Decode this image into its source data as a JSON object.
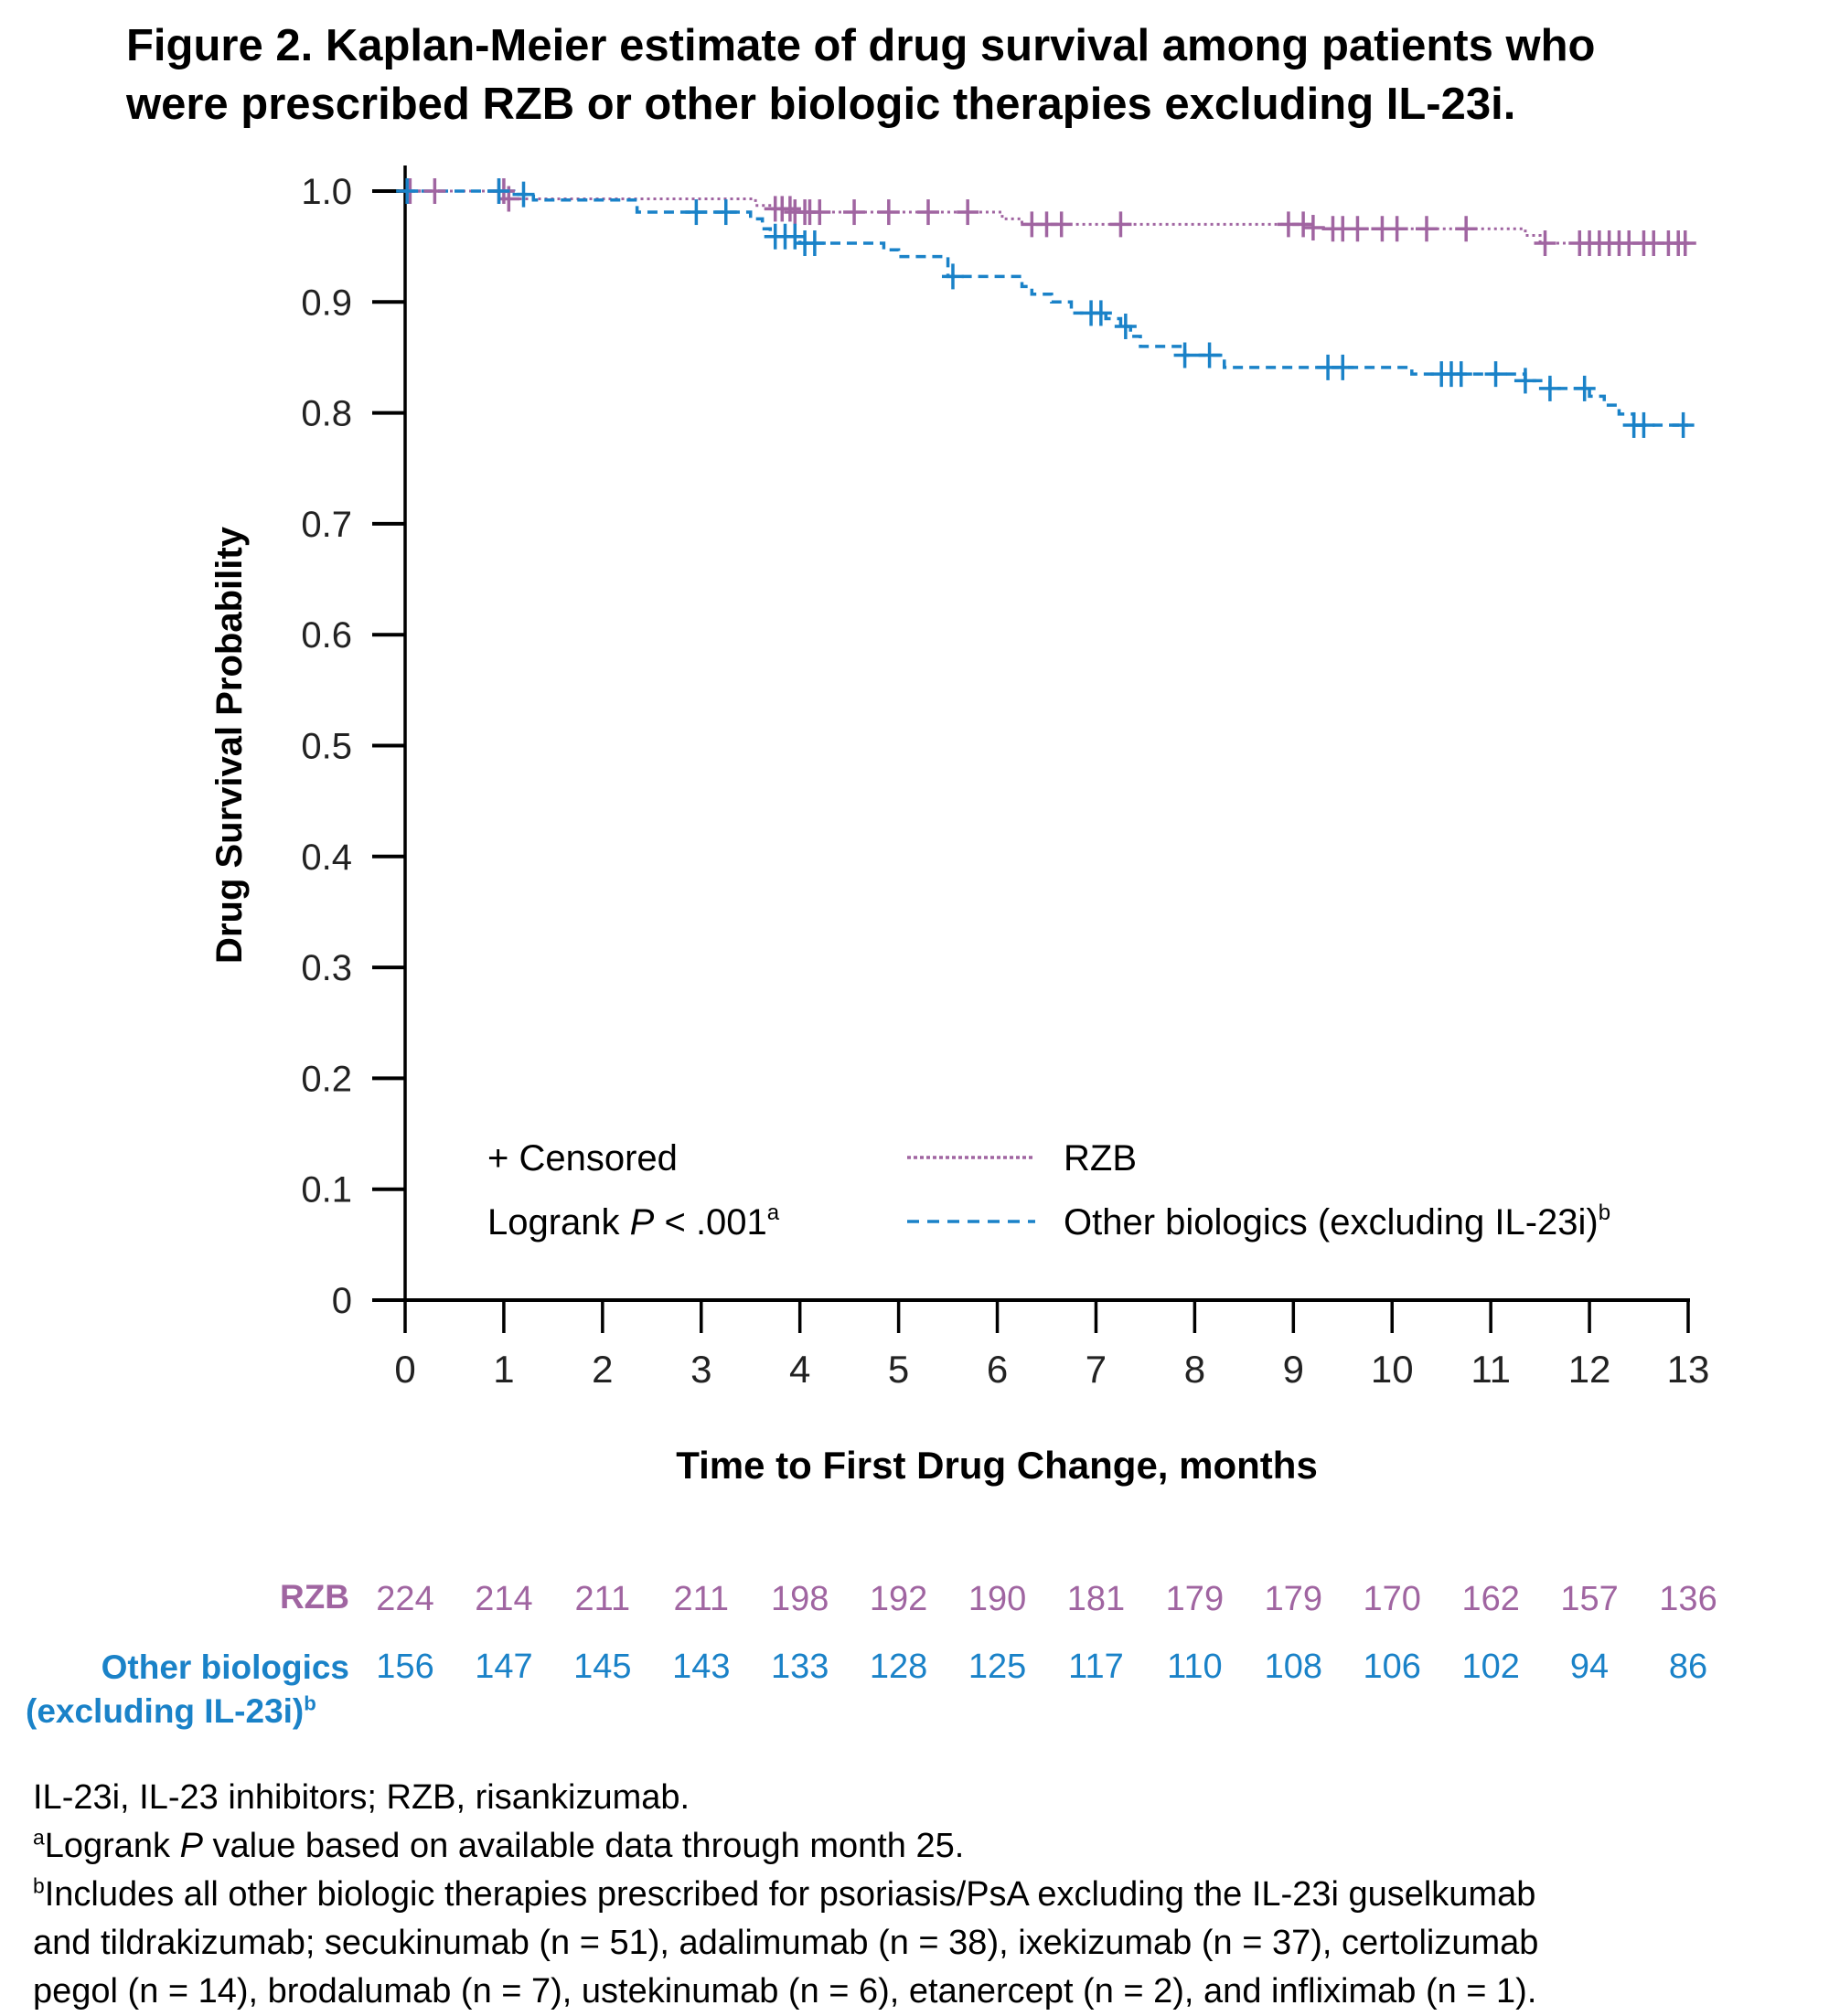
{
  "title": {
    "line1": "Figure 2. Kaplan-Meier estimate of drug survival among patients who",
    "line2": "were prescribed RZB or other biologic therapies excluding IL-23i."
  },
  "colors": {
    "rzb": "#a065a1",
    "other": "#1a82c8",
    "axis": "#000000"
  },
  "chart_data": {
    "type": "line",
    "subtype": "kaplan-meier step",
    "title": "Kaplan-Meier estimate of drug survival among patients who were prescribed RZB or other biologic therapies excluding IL-23i",
    "xlabel": "Time to First Drug Change, months",
    "ylabel": "Drug Survival Probability",
    "xlim": [
      0,
      13
    ],
    "ylim": [
      0,
      1.0
    ],
    "xticks": [
      "0",
      "1",
      "2",
      "3",
      "4",
      "5",
      "6",
      "7",
      "8",
      "9",
      "10",
      "11",
      "12",
      "13"
    ],
    "yticks": [
      "0",
      "0.1",
      "0.2",
      "0.3",
      "0.4",
      "0.5",
      "0.6",
      "0.7",
      "0.8",
      "0.9",
      "1.0"
    ],
    "grid": false,
    "legend": {
      "placement": "bottom-center",
      "censored_label": "+ Censored",
      "logrank_prefix": "Logrank ",
      "logrank_p": "P",
      "logrank_value": " < .001",
      "logrank_sup": "a",
      "entries": [
        {
          "name": "RZB",
          "style": "dotted",
          "sup": ""
        },
        {
          "name": "Other biologics (excluding IL-23i)",
          "style": "dashed",
          "sup": "b"
        }
      ]
    },
    "series": [
      {
        "name": "RZB",
        "style": "dotted",
        "steps": [
          [
            0,
            1.0
          ],
          [
            1.05,
            0.993
          ],
          [
            3.55,
            0.987
          ],
          [
            3.75,
            0.984
          ],
          [
            3.95,
            0.981
          ],
          [
            6.05,
            0.975
          ],
          [
            6.25,
            0.97
          ],
          [
            9.2,
            0.967
          ],
          [
            9.35,
            0.966
          ],
          [
            11.35,
            0.96
          ],
          [
            11.5,
            0.953
          ],
          [
            13,
            0.953
          ]
        ],
        "censored": [
          0.05,
          0.3,
          0.95,
          1.0,
          1.05,
          3.75,
          3.82,
          3.9,
          3.95,
          4.05,
          4.1,
          4.2,
          4.55,
          4.9,
          5.3,
          5.7,
          6.35,
          6.5,
          6.65,
          7.25,
          8.95,
          9.1,
          9.2,
          9.4,
          9.5,
          9.65,
          9.9,
          10.05,
          10.35,
          10.75,
          11.55,
          11.9,
          12.0,
          12.1,
          12.2,
          12.3,
          12.4,
          12.55,
          12.65,
          12.8,
          12.9,
          12.97
        ]
      },
      {
        "name": "Other biologics (excluding IL-23i)",
        "style": "dashed",
        "steps": [
          [
            0,
            1.0
          ],
          [
            1.1,
            0.997
          ],
          [
            1.3,
            0.992
          ],
          [
            2.35,
            0.981
          ],
          [
            3.5,
            0.975
          ],
          [
            3.62,
            0.966
          ],
          [
            3.7,
            0.959
          ],
          [
            4.0,
            0.953
          ],
          [
            4.85,
            0.947
          ],
          [
            5.0,
            0.941
          ],
          [
            5.5,
            0.923
          ],
          [
            6.25,
            0.914
          ],
          [
            6.35,
            0.907
          ],
          [
            6.55,
            0.9
          ],
          [
            6.75,
            0.89
          ],
          [
            7.1,
            0.885
          ],
          [
            7.25,
            0.878
          ],
          [
            7.35,
            0.869
          ],
          [
            7.45,
            0.86
          ],
          [
            7.9,
            0.852
          ],
          [
            8.3,
            0.841
          ],
          [
            10.2,
            0.835
          ],
          [
            11.35,
            0.829
          ],
          [
            11.6,
            0.822
          ],
          [
            12.0,
            0.815
          ],
          [
            12.15,
            0.807
          ],
          [
            12.3,
            0.799
          ],
          [
            12.45,
            0.789
          ],
          [
            13,
            0.789
          ]
        ],
        "censored": [
          0.02,
          0.95,
          1.2,
          2.95,
          3.25,
          3.75,
          3.85,
          3.95,
          4.05,
          4.15,
          5.55,
          6.95,
          7.05,
          7.3,
          7.9,
          8.15,
          9.35,
          9.5,
          10.5,
          10.6,
          10.7,
          11.05,
          11.35,
          11.6,
          11.95,
          12.45,
          12.55,
          12.95
        ]
      }
    ],
    "risk_table": {
      "times": [
        0,
        1,
        2,
        3,
        4,
        5,
        6,
        7,
        8,
        9,
        10,
        11,
        12,
        13
      ],
      "rows": [
        {
          "label": "RZB",
          "label2": "",
          "values": [
            "224",
            "214",
            "211",
            "211",
            "198",
            "192",
            "190",
            "181",
            "179",
            "179",
            "170",
            "162",
            "157",
            "136"
          ]
        },
        {
          "label": "Other biologics",
          "label2": "(excluding IL-23i)",
          "label2_sup": "b",
          "values": [
            "156",
            "147",
            "145",
            "143",
            "133",
            "128",
            "125",
            "117",
            "110",
            "108",
            "106",
            "102",
            "94",
            "86"
          ]
        }
      ]
    }
  },
  "footnotes": {
    "line1": "IL-23i, IL-23 inhibitors; RZB, risankizumab.",
    "line2_sup": "a",
    "line2_pre": "Logrank ",
    "line2_italic": "P",
    "line2_post": " value based on available data through month 25.",
    "line3_sup": "b",
    "line3": "Includes all other biologic therapies prescribed for psoriasis/PsA excluding the IL-23i guselkumab",
    "line4": "and tildrakizumab; secukinumab (n = 51), adalimumab (n = 38), ixekizumab (n = 37), certolizumab",
    "line5": "pegol (n = 14), brodalumab (n = 7), ustekinumab (n = 6), etanercept (n = 2), and infliximab (n = 1)."
  }
}
